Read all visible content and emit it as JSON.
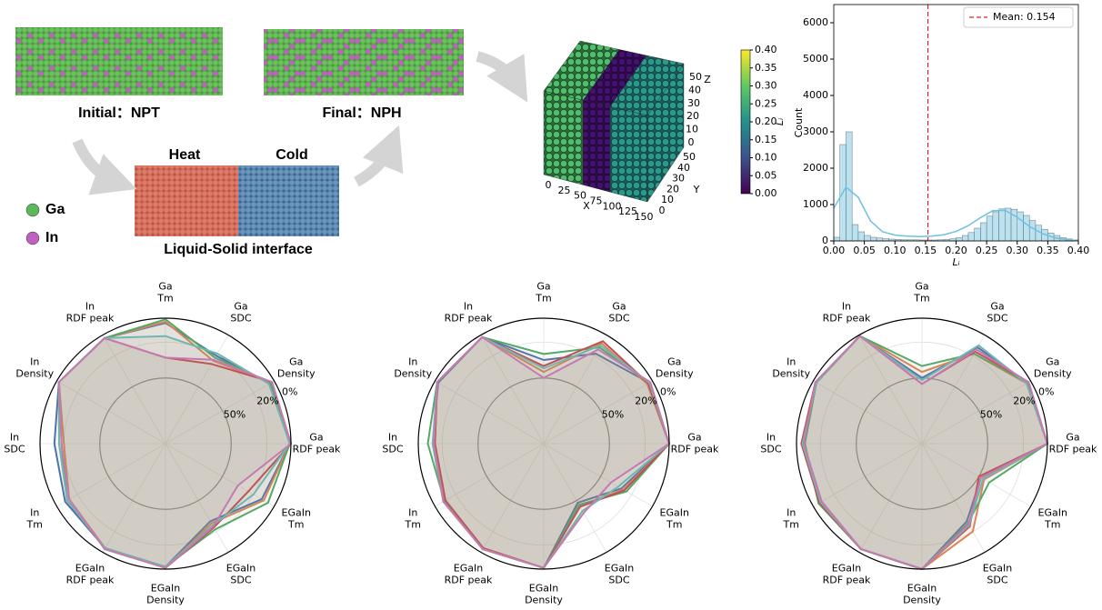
{
  "schematic": {
    "initial_label": "Initial：NPT",
    "final_label": "Final：NPH",
    "heat_label": "Heat",
    "cold_label": "Cold",
    "interface_label": "Liquid-Solid interface",
    "legend": [
      {
        "name": "Ga",
        "color": "#5cb85c"
      },
      {
        "name": "In",
        "color": "#c060c0"
      }
    ]
  },
  "chart_data": [
    {
      "type": "scatter3d",
      "xlabel": "X",
      "ylabel": "Y",
      "zlabel": "Z",
      "xlim": [
        0,
        150
      ],
      "ylim": [
        0,
        50
      ],
      "zlim": [
        0,
        50
      ],
      "xticks": [
        0,
        25,
        50,
        75,
        100,
        125,
        150
      ],
      "yticks": [
        0,
        10,
        20,
        30,
        40,
        50
      ],
      "zticks": [
        0,
        10,
        20,
        30,
        40,
        50
      ],
      "colorbar": {
        "label": "Lᵢ",
        "colormap": "viridis",
        "lim": [
          0,
          0.4
        ],
        "ticks": [
          {
            "value": 0,
            "label": "0.00"
          },
          {
            "value": 0.05,
            "label": "0.05"
          },
          {
            "value": 0.1,
            "label": "0.10"
          },
          {
            "value": 0.15,
            "label": "0.15"
          },
          {
            "value": 0.2,
            "label": "0.20"
          },
          {
            "value": 0.25,
            "label": "0.25"
          },
          {
            "value": 0.3,
            "label": "0.30"
          },
          {
            "value": 0.35,
            "label": "0.35"
          },
          {
            "value": 0.4,
            "label": "0.40"
          }
        ]
      }
    },
    {
      "type": "histogram",
      "xlabel": "Lᵢ",
      "ylabel": "Count",
      "color": "#a6d8ea",
      "bins": [
        0,
        0.01,
        0.02,
        0.03,
        0.04,
        0.05,
        0.06,
        0.07,
        0.08,
        0.09,
        0.1,
        0.11,
        0.12,
        0.13,
        0.14,
        0.15,
        0.16,
        0.17,
        0.18,
        0.19,
        0.2,
        0.21,
        0.22,
        0.23,
        0.24,
        0.25,
        0.26,
        0.27,
        0.28,
        0.29,
        0.3,
        0.31,
        0.32,
        0.33,
        0.34,
        0.35,
        0.36,
        0.37,
        0.38,
        0.39,
        0.4
      ],
      "counts": [
        100,
        2650,
        3000,
        450,
        250,
        150,
        100,
        80,
        60,
        50,
        40,
        30,
        30,
        30,
        25,
        25,
        25,
        30,
        40,
        60,
        90,
        150,
        230,
        350,
        500,
        680,
        800,
        880,
        900,
        870,
        800,
        700,
        560,
        430,
        320,
        220,
        150,
        90,
        55,
        30
      ],
      "kde": {
        "color": "#6ec1e0",
        "x": [
          0,
          0.02,
          0.04,
          0.06,
          0.08,
          0.1,
          0.12,
          0.14,
          0.16,
          0.18,
          0.2,
          0.22,
          0.24,
          0.26,
          0.28,
          0.3,
          0.32,
          0.34,
          0.36,
          0.38,
          0.4
        ],
        "values": [
          900,
          1480,
          1200,
          550,
          250,
          160,
          130,
          120,
          130,
          170,
          260,
          420,
          640,
          830,
          840,
          650,
          400,
          210,
          90,
          35,
          10
        ]
      },
      "mean": 0.154,
      "mean_label": "Mean: 0.154",
      "mean_color": "#d62728",
      "legend": "upper right",
      "xlim": [
        0,
        0.4
      ],
      "ylim": [
        0,
        6500
      ],
      "xticks": [
        {
          "value": 0,
          "label": "0.00"
        },
        {
          "value": 0.05,
          "label": "0.05"
        },
        {
          "value": 0.1,
          "label": "0.10"
        },
        {
          "value": 0.15,
          "label": "0.15"
        },
        {
          "value": 0.2,
          "label": "0.20"
        },
        {
          "value": 0.25,
          "label": "0.25"
        },
        {
          "value": 0.3,
          "label": "0.30"
        },
        {
          "value": 0.35,
          "label": "0.35"
        },
        {
          "value": 0.4,
          "label": "0.40"
        }
      ],
      "yticks": [
        0,
        1000,
        2000,
        3000,
        4000,
        5000,
        6000
      ]
    },
    {
      "type": "radar",
      "categories": [
        "Ga\nTm",
        "Ga\nSDC",
        "Ga\nDensity",
        "Ga\nRDF peak",
        "EGaIn\nTm",
        "EGaIn\nSDC",
        "EGaIn\nDensity",
        "EGaIn\nRDF peak",
        "In\nTm",
        "In\nSDC",
        "In\nDensity",
        "In\nRDF peak"
      ],
      "rlim": [
        105,
        0
      ],
      "rticks": [
        {
          "value": 0,
          "label": "0%"
        },
        {
          "value": 20,
          "label": "20%"
        },
        {
          "value": 50,
          "label": "50%"
        }
      ],
      "fill": "#a08c7a",
      "series": [
        {
          "color": "#4c72b0",
          "values": [
            4,
            20,
            4,
            1,
            12,
            30,
            2,
            4,
            8,
            12,
            2,
            3
          ]
        },
        {
          "color": "#dd8452",
          "values": [
            3,
            25,
            3,
            1,
            10,
            28,
            1,
            4,
            12,
            20,
            2,
            3
          ]
        },
        {
          "color": "#55a868",
          "values": [
            1,
            22,
            3,
            1,
            6,
            22,
            2,
            4,
            10,
            18,
            2,
            3
          ]
        },
        {
          "color": "#c44e52",
          "values": [
            33,
            28,
            2,
            0,
            25,
            24,
            1,
            4,
            10,
            16,
            2,
            3
          ]
        },
        {
          "color": "#6fb8b0",
          "values": [
            15,
            18,
            5,
            1,
            20,
            26,
            2,
            4,
            10,
            16,
            2,
            3
          ]
        },
        {
          "color": "#c47bb0",
          "values": [
            33,
            24,
            2,
            0,
            35,
            25,
            1,
            3,
            12,
            18,
            2,
            3
          ]
        }
      ]
    },
    {
      "type": "radar",
      "categories": [
        "Ga\nTm",
        "Ga\nSDC",
        "Ga\nDensity",
        "Ga\nRDF peak",
        "EGaIn\nTm",
        "EGaIn\nSDC",
        "EGaIn\nDensity",
        "EGaIn\nRDF peak",
        "In\nTm",
        "In\nSDC",
        "In\nDensity",
        "In\nRDF peak"
      ],
      "rlim": [
        105,
        0
      ],
      "rticks": [
        {
          "value": 0,
          "label": "0%"
        },
        {
          "value": 20,
          "label": "20%"
        },
        {
          "value": 50,
          "label": "50%"
        }
      ],
      "fill": "#a08c7a",
      "series": [
        {
          "color": "#4c72b0",
          "values": [
            35,
            18,
            3,
            0,
            30,
            48,
            1,
            3,
            8,
            12,
            3,
            2
          ]
        },
        {
          "color": "#dd8452",
          "values": [
            45,
            8,
            5,
            0,
            28,
            45,
            1,
            4,
            10,
            14,
            2,
            2
          ]
        },
        {
          "color": "#55a868",
          "values": [
            30,
            12,
            3,
            0,
            25,
            46,
            1,
            3,
            9,
            8,
            2,
            2
          ]
        },
        {
          "color": "#c44e52",
          "values": [
            40,
            6,
            4,
            0,
            27,
            44,
            1,
            4,
            10,
            14,
            2,
            2
          ]
        },
        {
          "color": "#6fb8b0",
          "values": [
            42,
            10,
            3,
            0,
            33,
            40,
            1,
            3,
            8,
            12,
            2,
            2
          ]
        },
        {
          "color": "#c47bb0",
          "values": [
            50,
            14,
            2,
            0,
            40,
            38,
            1,
            3,
            8,
            13,
            2,
            2
          ]
        }
      ]
    },
    {
      "type": "radar",
      "categories": [
        "Ga\nTm",
        "Ga\nSDC",
        "Ga\nDensity",
        "Ga\nRDF peak",
        "EGaIn\nTm",
        "EGaIn\nSDC",
        "EGaIn\nDensity",
        "EGaIn\nRDF peak",
        "In\nTm",
        "In\nSDC",
        "In\nDensity",
        "In\nRDF peak"
      ],
      "rlim": [
        105,
        0
      ],
      "rticks": [
        {
          "value": 0,
          "label": "0%"
        },
        {
          "value": 20,
          "label": "20%"
        },
        {
          "value": 50,
          "label": "50%"
        }
      ],
      "fill": "#a08c7a",
      "series": [
        {
          "color": "#4c72b0",
          "values": [
            50,
            12,
            3,
            0,
            48,
            30,
            0,
            3,
            8,
            6,
            3,
            1
          ]
        },
        {
          "color": "#dd8452",
          "values": [
            45,
            18,
            4,
            0,
            45,
            20,
            0,
            3,
            7,
            5,
            3,
            1
          ]
        },
        {
          "color": "#55a868",
          "values": [
            40,
            18,
            3,
            0,
            40,
            28,
            0,
            3,
            5,
            7,
            3,
            1
          ]
        },
        {
          "color": "#c44e52",
          "values": [
            55,
            16,
            2,
            0,
            50,
            25,
            0,
            3,
            6,
            4,
            2,
            1
          ]
        },
        {
          "color": "#6fb8b0",
          "values": [
            52,
            10,
            4,
            0,
            46,
            26,
            0,
            3,
            7,
            5,
            3,
            1
          ]
        },
        {
          "color": "#c47bb0",
          "values": [
            55,
            14,
            2,
            0,
            48,
            27,
            0,
            3,
            8,
            6,
            2,
            1
          ]
        }
      ]
    }
  ]
}
